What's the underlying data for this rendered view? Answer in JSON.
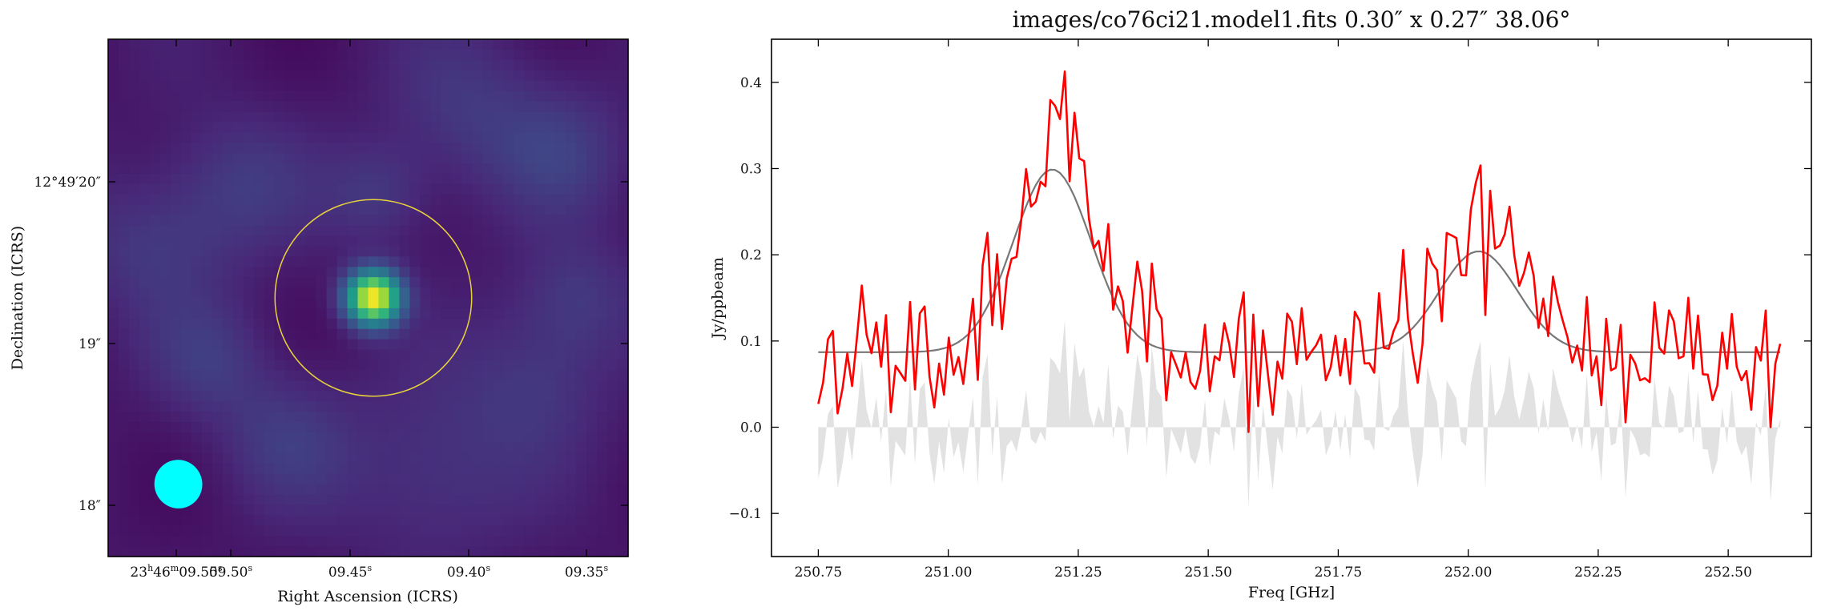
{
  "chart_data": [
    {
      "type": "heatmap",
      "title": "",
      "xlabel": "Right Ascension (ICRS)",
      "ylabel": "Declination (ICRS)",
      "x_ticks": [
        {
          "pre": "23",
          "h": "h",
          "mid": "46",
          "m": "m",
          "sec": "09.55",
          "s": "s"
        },
        {
          "pre": "",
          "h": "",
          "mid": "",
          "m": "",
          "sec": "09.50",
          "s": "s"
        },
        {
          "pre": "",
          "h": "",
          "mid": "",
          "m": "",
          "sec": "09.45",
          "s": "s"
        },
        {
          "pre": "",
          "h": "",
          "mid": "",
          "m": "",
          "sec": "09.40",
          "s": "s"
        },
        {
          "pre": "",
          "h": "",
          "mid": "",
          "m": "",
          "sec": "09.35",
          "s": "s"
        }
      ],
      "y_ticks": [
        "12°49′20″",
        "19″",
        "18″"
      ],
      "colormap": "viridis",
      "source_peak_fraction": [
        0.51,
        0.5
      ],
      "aperture_radius_fraction": 0.19,
      "beam_fraction": {
        "cx": 0.135,
        "cy": 0.86,
        "rx": 0.046,
        "ry": 0.047
      },
      "aperture_color": "#e8d23c",
      "beam_color": "#00ffff"
    },
    {
      "type": "line",
      "title": "images/co76ci21.model1.fits 0.30″ x 0.27″ 38.06°",
      "xlabel": "Freq [GHz]",
      "ylabel": "Jy/ppbeam",
      "xlim": [
        250.66,
        252.66
      ],
      "ylim": [
        -0.15,
        0.45
      ],
      "x_ticks": [
        "250.75",
        "251.00",
        "251.25",
        "251.50",
        "251.75",
        "252.00",
        "252.25",
        "252.50"
      ],
      "y_ticks": [
        "−0.1",
        "0.0",
        "0.1",
        "0.2",
        "0.3",
        "0.4"
      ],
      "x_range": [
        250.75,
        252.6
      ],
      "npoints": 200,
      "series": [
        {
          "color": "#ff0000",
          "style": "line",
          "noise_std": 0.04,
          "seed": 7
        },
        {
          "color": "#777777",
          "style": "line"
        },
        {
          "color": "#e2e2e2",
          "style": "fill"
        }
      ],
      "model": {
        "baseline": 0.087,
        "lines": [
          {
            "center": 251.2,
            "sigma": 0.075,
            "amp": 0.212
          },
          {
            "center": 252.02,
            "sigma": 0.075,
            "amp": 0.117
          }
        ]
      }
    }
  ]
}
